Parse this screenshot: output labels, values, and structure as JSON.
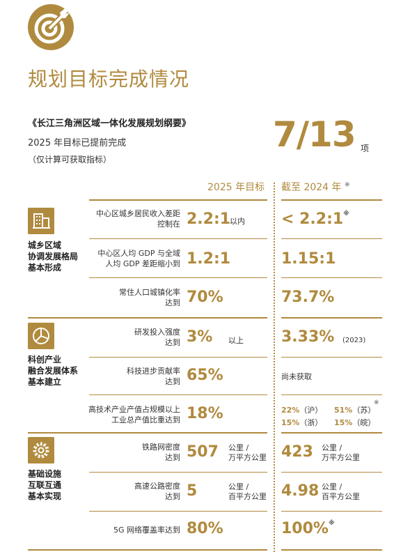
{
  "header": {
    "title": "规划目标完成情况",
    "doc_title": "《长江三角洲区域一体化发展规划纲要》",
    "doc_sub1": "2025 年目标已提前完成",
    "doc_sub2": "（仅计算可获取指标）",
    "completed_fraction": "7/13",
    "completed_unit": "项"
  },
  "columns": {
    "target": "2025 年目标",
    "actual": "截至 2024 年",
    "actual_mark": "※"
  },
  "categories": [
    {
      "label_lines": [
        "城乡区域",
        "协调发展格局",
        "基本形成"
      ],
      "icon": "building-icon",
      "rows": [
        {
          "label_lines": [
            "中心区城乡居民收入差距",
            "控制在"
          ],
          "value": "2.2:1",
          "unit_lines": [
            "以内"
          ],
          "actual": "< 2.2:1",
          "actual_mark": "※"
        },
        {
          "label_lines": [
            "中心区人均 GDP 与全域",
            "人均 GDP 差距缩小到"
          ],
          "value": "1.2:1",
          "unit_lines": [],
          "actual": "1.15:1"
        },
        {
          "label_lines": [
            "常住人口城镇化率",
            "达到"
          ],
          "value": "70%",
          "unit_lines": [],
          "actual": "73.7%"
        }
      ]
    },
    {
      "label_lines": [
        "科创产业",
        "融合发展体系",
        "基本建立"
      ],
      "icon": "pie-chart-icon",
      "rows": [
        {
          "label_lines": [
            "研发投入强度",
            "达到"
          ],
          "value": "3%",
          "unit_lines": [
            "以上"
          ],
          "actual": "3.33%",
          "actual_note": "(2023)"
        },
        {
          "label_lines": [
            "科技进步贡献率",
            "达到"
          ],
          "value": "65%",
          "unit_lines": [],
          "actual_text": "尚未获取"
        },
        {
          "label_lines": [
            "高技术产业产值占规模以上",
            "工业总产值比重达到"
          ],
          "value": "18%",
          "unit_lines": [],
          "actual_pairs": [
            {
              "value": "22%",
              "region": "（沪）"
            },
            {
              "value": "51%",
              "region": "（苏）"
            },
            {
              "value": "15%",
              "region": "（浙）"
            },
            {
              "value": "15%",
              "region": "（皖）"
            }
          ],
          "actual_mark": "※"
        }
      ]
    },
    {
      "label_lines": [
        "基础设施",
        "互联互通",
        "基本实现"
      ],
      "icon": "gear-icon",
      "rows": [
        {
          "label_lines": [
            "铁路网密度",
            "达到"
          ],
          "value": "507",
          "unit_lines": [
            "公里 /",
            "万平方公里"
          ],
          "actual": "423",
          "actual_unit_lines": [
            "公里 /",
            "万平方公里"
          ]
        },
        {
          "label_lines": [
            "高速公路密度",
            "达到"
          ],
          "value": "5",
          "unit_lines": [
            "公里 /",
            "百平方公里"
          ],
          "actual": "4.98",
          "actual_unit_lines": [
            "公里 /",
            "百平方公里"
          ]
        },
        {
          "label_lines": [
            "5G 网络覆盖率达到"
          ],
          "value": "80%",
          "unit_lines": [],
          "actual": "100%",
          "actual_mark": "※"
        }
      ]
    }
  ],
  "colors": {
    "accent": "#b08a3e",
    "text": "#333333"
  }
}
